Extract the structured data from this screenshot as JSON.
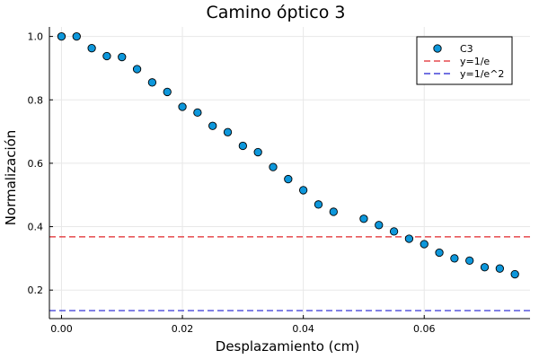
{
  "chart_data": {
    "type": "scatter",
    "title": "Camino óptico 3",
    "xlabel": "Desplazamiento (cm)",
    "ylabel": "Normalización",
    "xlim": [
      -0.002,
      0.0775
    ],
    "ylim": [
      0.11,
      1.03
    ],
    "xticks": [
      0.0,
      0.02,
      0.04,
      0.06
    ],
    "xtick_labels": [
      "0.00",
      "0.02",
      "0.04",
      "0.06"
    ],
    "yticks": [
      0.2,
      0.4,
      0.6,
      0.8,
      1.0
    ],
    "ytick_labels": [
      "0.2",
      "0.4",
      "0.6",
      "0.8",
      "1.0"
    ],
    "grid": true,
    "legend_position": "top-right",
    "series": [
      {
        "name": "C3",
        "kind": "scatter",
        "color": "#0d97db",
        "x": [
          0.0,
          0.0025,
          0.005,
          0.0075,
          0.01,
          0.0125,
          0.015,
          0.0175,
          0.02,
          0.0225,
          0.025,
          0.0275,
          0.03,
          0.0325,
          0.035,
          0.0375,
          0.04,
          0.0425,
          0.045,
          0.05,
          0.0525,
          0.055,
          0.0575,
          0.06,
          0.0625,
          0.065,
          0.0675,
          0.07,
          0.0725,
          0.075
        ],
        "y": [
          1.0,
          1.0,
          0.963,
          0.938,
          0.935,
          0.897,
          0.855,
          0.825,
          0.778,
          0.76,
          0.718,
          0.698,
          0.655,
          0.635,
          0.588,
          0.55,
          0.515,
          0.47,
          0.447,
          0.425,
          0.405,
          0.385,
          0.362,
          0.345,
          0.318,
          0.3,
          0.293,
          0.272,
          0.268,
          0.25
        ]
      },
      {
        "name": "y=1/e",
        "kind": "hline",
        "color": "#e0262a",
        "y": 0.3679
      },
      {
        "name": "y=1/e^2",
        "kind": "hline",
        "color": "#1f1fd0",
        "y": 0.1353
      }
    ]
  }
}
